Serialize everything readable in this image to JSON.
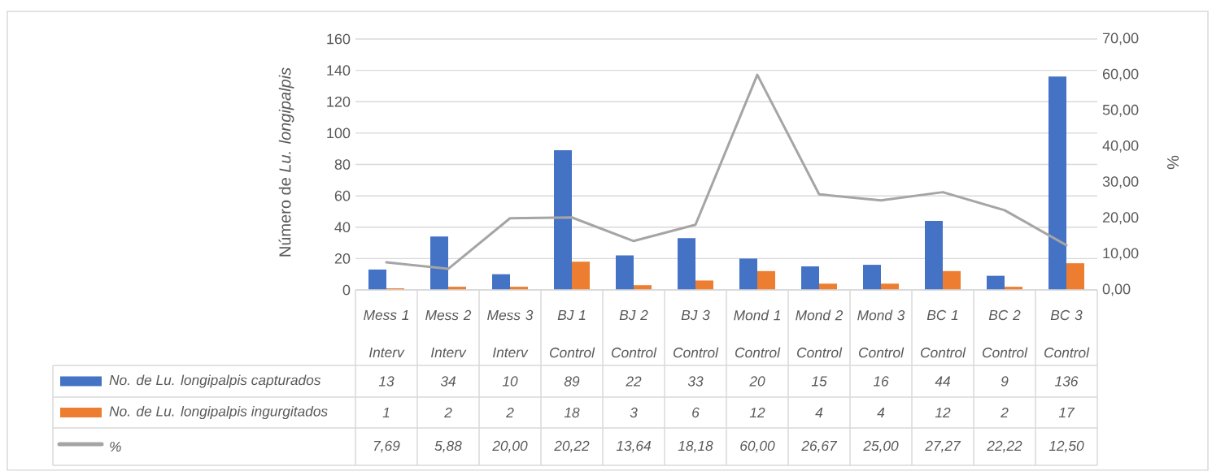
{
  "chart_data": {
    "type": "bar",
    "ylabel": "Número de *Lu. longipalpis*",
    "y2label": "%",
    "categories": [
      "Mess 1",
      "Mess 2",
      "Mess 3",
      "BJ 1",
      "BJ 2",
      "BJ 3",
      "Mond 1",
      "Mond 2",
      "Mond 3",
      "BC 1",
      "BC 2",
      "BC 3"
    ],
    "annotations": [
      "Interv",
      "Interv",
      "Interv",
      "Control",
      "Control",
      "Control",
      "Control",
      "Control",
      "Control",
      "Control",
      "Control",
      "Control"
    ],
    "series": [
      {
        "name": "No. de Lu. longipalpis capturados",
        "color": "#4472c4",
        "values": [
          13,
          34,
          10,
          89,
          22,
          33,
          20,
          15,
          16,
          44,
          9,
          136
        ],
        "value_labels": [
          "13",
          "34",
          "10",
          "89",
          "22",
          "33",
          "20",
          "15",
          "16",
          "44",
          "9",
          "136"
        ]
      },
      {
        "name": "No. de Lu. longipalpis ingurgitados",
        "color": "#ed7d31",
        "values": [
          1,
          2,
          2,
          18,
          3,
          6,
          12,
          4,
          4,
          12,
          2,
          17
        ],
        "value_labels": [
          "1",
          "2",
          "2",
          "18",
          "3",
          "6",
          "12",
          "4",
          "4",
          "12",
          "2",
          "17"
        ]
      },
      {
        "name": "%",
        "type": "line",
        "axis": "y2",
        "color": "#a5a5a5",
        "values": [
          7.69,
          5.88,
          20.0,
          20.22,
          13.64,
          18.18,
          60.0,
          26.67,
          25.0,
          27.27,
          22.22,
          12.5
        ],
        "value_labels": [
          "7,69",
          "5,88",
          "20,00",
          "20,22",
          "13,64",
          "18,18",
          "60,00",
          "26,67",
          "25,00",
          "27,27",
          "22,22",
          "12,50"
        ]
      }
    ],
    "ylim": [
      0,
      160
    ],
    "yticks": [
      0,
      20,
      40,
      60,
      80,
      100,
      120,
      140,
      160
    ],
    "y2lim": [
      0,
      70
    ],
    "y2ticks": [
      {
        "value": 0,
        "label": "0,00"
      },
      {
        "value": 10,
        "label": "10,00"
      },
      {
        "value": 20,
        "label": "20,00"
      },
      {
        "value": 30,
        "label": "30,00"
      },
      {
        "value": 40,
        "label": "40,00"
      },
      {
        "value": 50,
        "label": "50,00"
      },
      {
        "value": 60,
        "label": "60,00"
      },
      {
        "value": 70,
        "label": "70,00"
      }
    ],
    "grid": "y",
    "legend": "bottom",
    "marker": "none",
    "line_style": "solid"
  }
}
